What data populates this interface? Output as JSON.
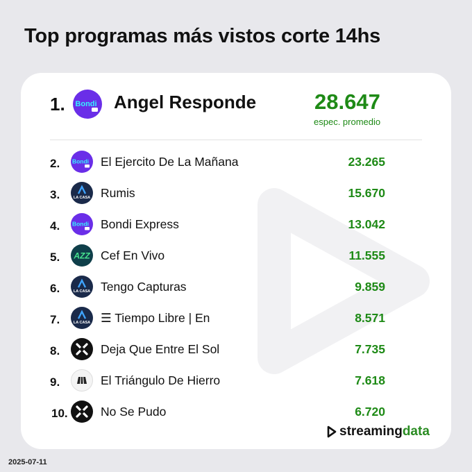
{
  "page": {
    "title": "Top programas más vistos corte 14hs",
    "date": "2025-07-11"
  },
  "colors": {
    "background": "#e8e8ec",
    "card": "#ffffff",
    "value_green": "#1e8a16",
    "bondi_purple": "#6a2ee8",
    "lacasa_navy": "#1a2a4a",
    "azz_teal": "#0f3f4a",
    "azz_green": "#48e38f"
  },
  "top": {
    "rank": "1.",
    "name": "Angel Responde",
    "logo": "bondi-logo",
    "logo_text": "Bondi",
    "value": "28.647",
    "subtitle": "espec. promedio"
  },
  "rows": [
    {
      "rank": "2.",
      "name": "El Ejercito De La Mañana",
      "value": "23.265",
      "logo": "bondi-logo",
      "logo_text": "Bondi"
    },
    {
      "rank": "3.",
      "name": "Rumis",
      "value": "15.670",
      "logo": "lacasa-logo",
      "logo_text": "LA CASA"
    },
    {
      "rank": "4.",
      "name": "Bondi Express",
      "value": "13.042",
      "logo": "bondi-logo",
      "logo_text": "Bondi"
    },
    {
      "rank": "5.",
      "name": "Cef En Vivo",
      "value": "11.555",
      "logo": "azz-logo",
      "logo_text": "AZZ"
    },
    {
      "rank": "6.",
      "name": "Tengo Capturas",
      "value": "9.859",
      "logo": "lacasa-logo",
      "logo_text": "LA CASA"
    },
    {
      "rank": "7.",
      "name": "☰ Tiempo Libre | En",
      "value": "8.571",
      "logo": "lacasa-logo",
      "logo_text": "LA CASA"
    },
    {
      "rank": "8.",
      "name": "Deja Que Entre El Sol",
      "value": "7.735",
      "logo": "x-logo"
    },
    {
      "rank": "9.",
      "name": "El Triángulo De Hierro",
      "value": "7.618",
      "logo": "hierro-logo"
    },
    {
      "rank": "10.",
      "name": "No Se Pudo",
      "value": "6.720",
      "logo": "x-logo"
    }
  ],
  "brand": {
    "part1": "streaming",
    "part2": "data",
    "icon": "play-triangle-icon"
  }
}
